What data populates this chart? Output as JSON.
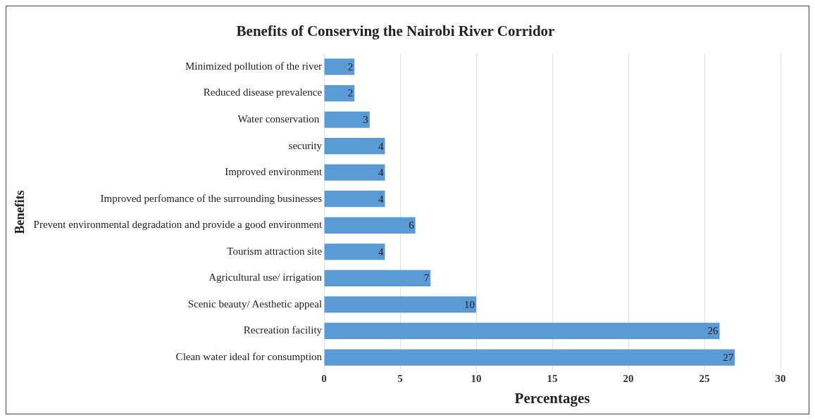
{
  "chart_data": {
    "type": "bar",
    "orientation": "horizontal",
    "title": "Benefits of Conserving the Nairobi River Corridor",
    "xlabel": "Percentages",
    "ylabel": "Benefits",
    "categories": [
      "Minimized pollution of the river",
      "Reduced disease prevalence",
      "Water conservation ",
      "security",
      "Improved environment",
      "Improved perfomance of the surrounding businesses",
      "Prevent environmental degradation and provide a good environment",
      "Tourism attraction site",
      "Agricultural use/ irrigation",
      "Scenic beauty/ Aesthetic appeal",
      "Recreation facility",
      "Clean water ideal for consumption"
    ],
    "values": [
      2,
      2,
      3,
      4,
      4,
      4,
      6,
      4,
      7,
      10,
      26,
      27
    ],
    "color": "#5b9bd5",
    "xlim": [
      0,
      30
    ],
    "xticks": [
      0,
      5,
      10,
      15,
      20,
      25,
      30
    ],
    "grid": "x",
    "legend": false,
    "data_labels": true
  }
}
